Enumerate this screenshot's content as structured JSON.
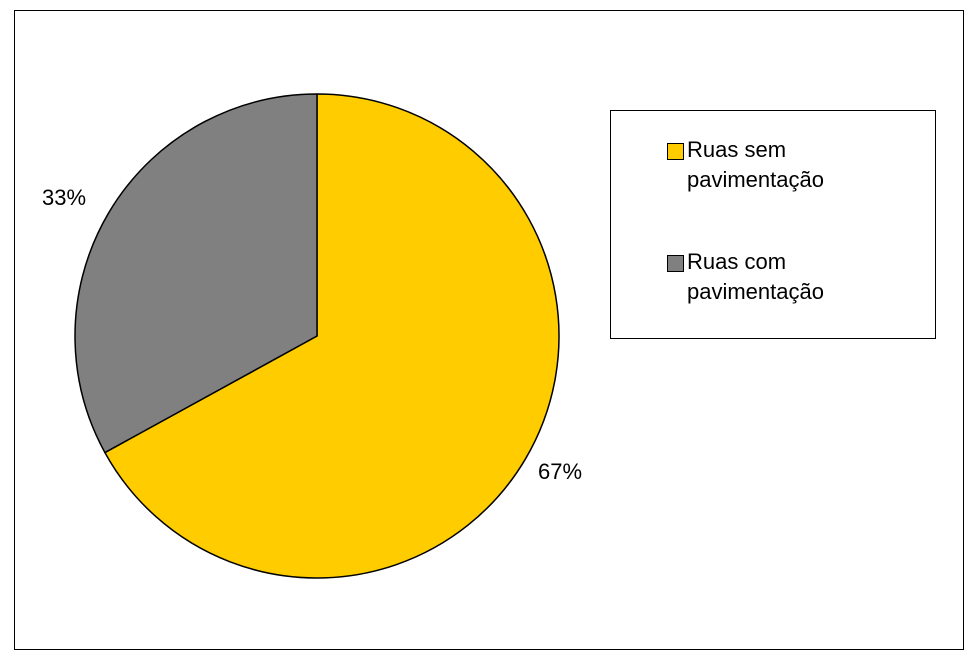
{
  "chart_data": {
    "type": "pie",
    "title": "",
    "slices": [
      {
        "name": "Ruas sem pavimentação",
        "value": 67,
        "label": "67%",
        "color": "#FFCC00"
      },
      {
        "name": "Ruas com pavimentação",
        "value": 33,
        "label": "33%",
        "color": "#808080"
      }
    ],
    "start_angle": "12 o'clock, clockwise",
    "legend_position": "right"
  },
  "legend": {
    "items": [
      {
        "label": "Ruas sem pavimentação",
        "color": "#FFCC00"
      },
      {
        "label": "Ruas com pavimentação",
        "color": "#808080"
      }
    ]
  }
}
